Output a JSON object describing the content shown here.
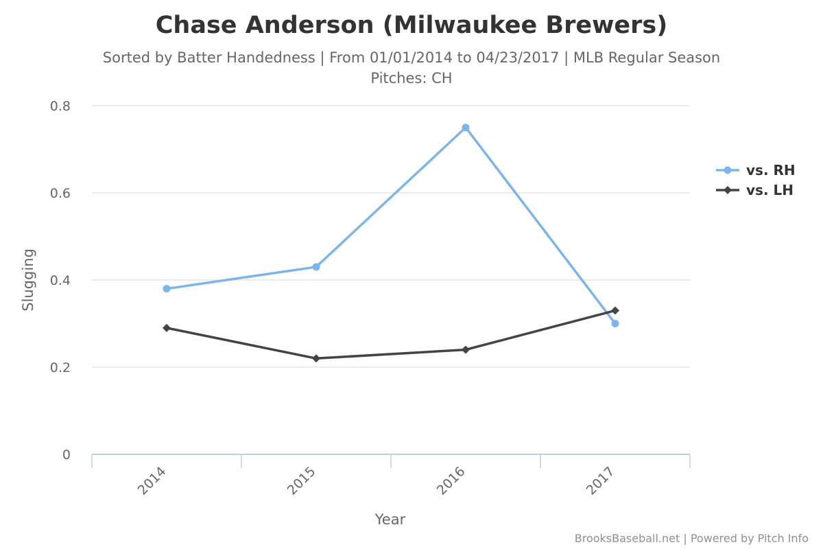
{
  "chart_data": {
    "type": "line",
    "title": "Chase Anderson (Milwaukee Brewers)",
    "subtitle": [
      "Sorted by Batter Handedness | From 01/01/2014 to 04/23/2017 | MLB Regular Season",
      "Pitches: CH"
    ],
    "xlabel": "Year",
    "ylabel": "Slugging",
    "categories": [
      "2014",
      "2015",
      "2016",
      "2017"
    ],
    "ylim": [
      0,
      0.8
    ],
    "yticks": [
      {
        "value": 0,
        "label": "0"
      },
      {
        "value": 0.2,
        "label": "0.2"
      },
      {
        "value": 0.4,
        "label": "0.4"
      },
      {
        "value": 0.6,
        "label": "0.6"
      },
      {
        "value": 0.8,
        "label": "0.8"
      }
    ],
    "grid": true,
    "legend_position": "right",
    "series": [
      {
        "name": "vs. RH",
        "color": "#7cb5ec",
        "marker": "circle",
        "values": [
          0.38,
          0.43,
          0.75,
          0.3
        ]
      },
      {
        "name": "vs. LH",
        "color": "#434348",
        "marker": "diamond",
        "values": [
          0.29,
          0.22,
          0.24,
          0.33
        ]
      }
    ],
    "credits": "BrooksBaseball.net | Powered by Pitch Info"
  }
}
